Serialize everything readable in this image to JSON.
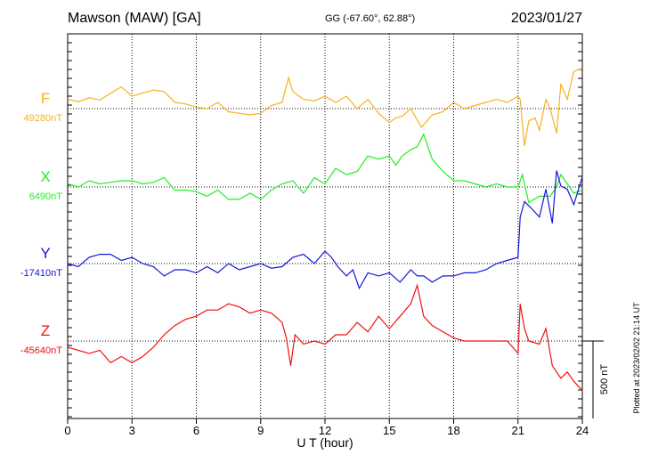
{
  "header": {
    "station": "Mawson (MAW)  [GA]",
    "coords": "GG (-67.60°,  62.88°)",
    "date": "2023/01/27"
  },
  "footer": {
    "plotted": "Plotted at 2023/02/02 21:14 UT"
  },
  "chart_data": {
    "type": "line",
    "title": "",
    "xlabel": "U T (hour)",
    "ylabel": "",
    "xlim": [
      0,
      24
    ],
    "xticks": [
      0,
      3,
      6,
      9,
      12,
      15,
      18,
      21,
      24
    ],
    "grid": true,
    "scale_bar_label": "500 nT",
    "scale_bar_value_nT": 500,
    "series": [
      {
        "name": "F",
        "baseline_label": "49280nT",
        "baseline_nT": 49280,
        "color": "#f5b21f",
        "x": [
          0,
          0.5,
          1,
          1.5,
          2,
          2.5,
          3,
          3.5,
          4,
          4.5,
          5,
          5.5,
          6,
          6.5,
          7,
          7.5,
          8,
          8.5,
          9,
          9.5,
          10,
          10.3,
          10.5,
          11,
          11.5,
          12,
          12.5,
          13,
          13.5,
          14,
          14.5,
          15,
          15.3,
          15.6,
          16,
          16.5,
          17,
          17.5,
          18,
          18.5,
          19,
          19.5,
          20,
          20.5,
          21,
          21.1,
          21.3,
          21.5,
          21.8,
          22,
          22.3,
          22.5,
          22.8,
          23,
          23.3,
          23.6,
          24
        ],
        "y": [
          60,
          45,
          70,
          55,
          100,
          140,
          80,
          100,
          120,
          110,
          40,
          30,
          10,
          0,
          40,
          -20,
          -30,
          -40,
          -30,
          20,
          40,
          200,
          110,
          60,
          50,
          80,
          40,
          80,
          0,
          60,
          -30,
          -90,
          -60,
          -50,
          0,
          -120,
          -40,
          -20,
          40,
          0,
          20,
          40,
          60,
          40,
          80,
          60,
          -240,
          -80,
          -60,
          -140,
          60,
          0,
          -160,
          160,
          60,
          240,
          260
        ]
      },
      {
        "name": "X",
        "baseline_label": "6490nT",
        "baseline_nT": 6490,
        "color": "#22ee22",
        "x": [
          0,
          0.5,
          1,
          1.5,
          2,
          2.5,
          3,
          3.5,
          4,
          4.5,
          5,
          5.5,
          6,
          6.5,
          7,
          7.5,
          8,
          8.5,
          9,
          9.5,
          10,
          10.5,
          11,
          11.5,
          12,
          12.5,
          13,
          13.5,
          14,
          14.5,
          15,
          15.3,
          15.6,
          16,
          16.3,
          16.6,
          17,
          17.5,
          18,
          18.5,
          19,
          19.5,
          20,
          20.5,
          21,
          21.2,
          21.5,
          22,
          22.5,
          22.8,
          23,
          23.3,
          23.6,
          24
        ],
        "y": [
          20,
          0,
          40,
          20,
          30,
          40,
          40,
          20,
          30,
          60,
          -20,
          -20,
          -30,
          -60,
          -20,
          -80,
          -80,
          -40,
          -80,
          -20,
          20,
          40,
          -40,
          60,
          20,
          120,
          80,
          100,
          200,
          180,
          200,
          140,
          200,
          240,
          260,
          340,
          180,
          100,
          40,
          40,
          20,
          0,
          20,
          0,
          0,
          80,
          -100,
          -60,
          -60,
          0,
          80,
          20,
          -40,
          -20
        ]
      },
      {
        "name": "Y",
        "baseline_label": "-17410nT",
        "baseline_nT": -17410,
        "color": "#1515dd",
        "x": [
          0,
          0.5,
          1,
          1.5,
          2,
          2.5,
          3,
          3.5,
          4,
          4.5,
          5,
          5.5,
          6,
          6.5,
          7,
          7.5,
          8,
          8.5,
          9,
          9.5,
          10,
          10.5,
          11,
          11.5,
          12,
          12.3,
          12.6,
          13,
          13.3,
          13.6,
          14,
          14.5,
          15,
          15.5,
          16,
          16.3,
          16.6,
          17,
          17.5,
          18,
          18.5,
          19,
          19.5,
          20,
          20.5,
          21,
          21.1,
          21.3,
          21.6,
          22,
          22.3,
          22.6,
          22.8,
          23,
          23.3,
          23.6,
          24
        ],
        "y": [
          0,
          -20,
          40,
          60,
          60,
          20,
          40,
          0,
          -20,
          -80,
          -40,
          -40,
          -60,
          -20,
          -60,
          0,
          -40,
          -20,
          0,
          -30,
          -20,
          40,
          60,
          0,
          80,
          40,
          -20,
          -80,
          -40,
          -160,
          -60,
          -80,
          -60,
          -120,
          -40,
          -80,
          -80,
          -120,
          -80,
          -80,
          -60,
          -60,
          -40,
          0,
          20,
          40,
          300,
          400,
          360,
          300,
          480,
          260,
          600,
          500,
          480,
          380,
          560
        ]
      },
      {
        "name": "Z",
        "baseline_label": "-45640nT",
        "baseline_nT": -45640,
        "color": "#ee1111",
        "x": [
          0,
          0.5,
          1,
          1.5,
          2,
          2.5,
          3,
          3.5,
          4,
          4.5,
          5,
          5.5,
          6,
          6.5,
          7,
          7.5,
          8,
          8.5,
          9,
          9.5,
          10,
          10.2,
          10.4,
          10.6,
          11,
          11.5,
          12,
          12.5,
          13,
          13.5,
          14,
          14.5,
          15,
          15.5,
          16,
          16.3,
          16.6,
          17,
          17.5,
          18,
          18.5,
          19,
          19.5,
          20,
          20.5,
          21,
          21.1,
          21.3,
          21.5,
          22,
          22.3,
          22.6,
          23,
          23.3,
          23.6,
          24
        ],
        "y": [
          -40,
          -60,
          -80,
          -60,
          -140,
          -100,
          -140,
          -100,
          -40,
          40,
          100,
          140,
          160,
          200,
          200,
          240,
          220,
          180,
          200,
          180,
          120,
          20,
          -160,
          40,
          -20,
          0,
          -20,
          40,
          40,
          120,
          60,
          160,
          80,
          160,
          240,
          360,
          160,
          100,
          60,
          20,
          0,
          0,
          0,
          0,
          0,
          -80,
          240,
          80,
          0,
          -20,
          80,
          -160,
          -240,
          -200,
          -260,
          -320
        ]
      }
    ]
  }
}
